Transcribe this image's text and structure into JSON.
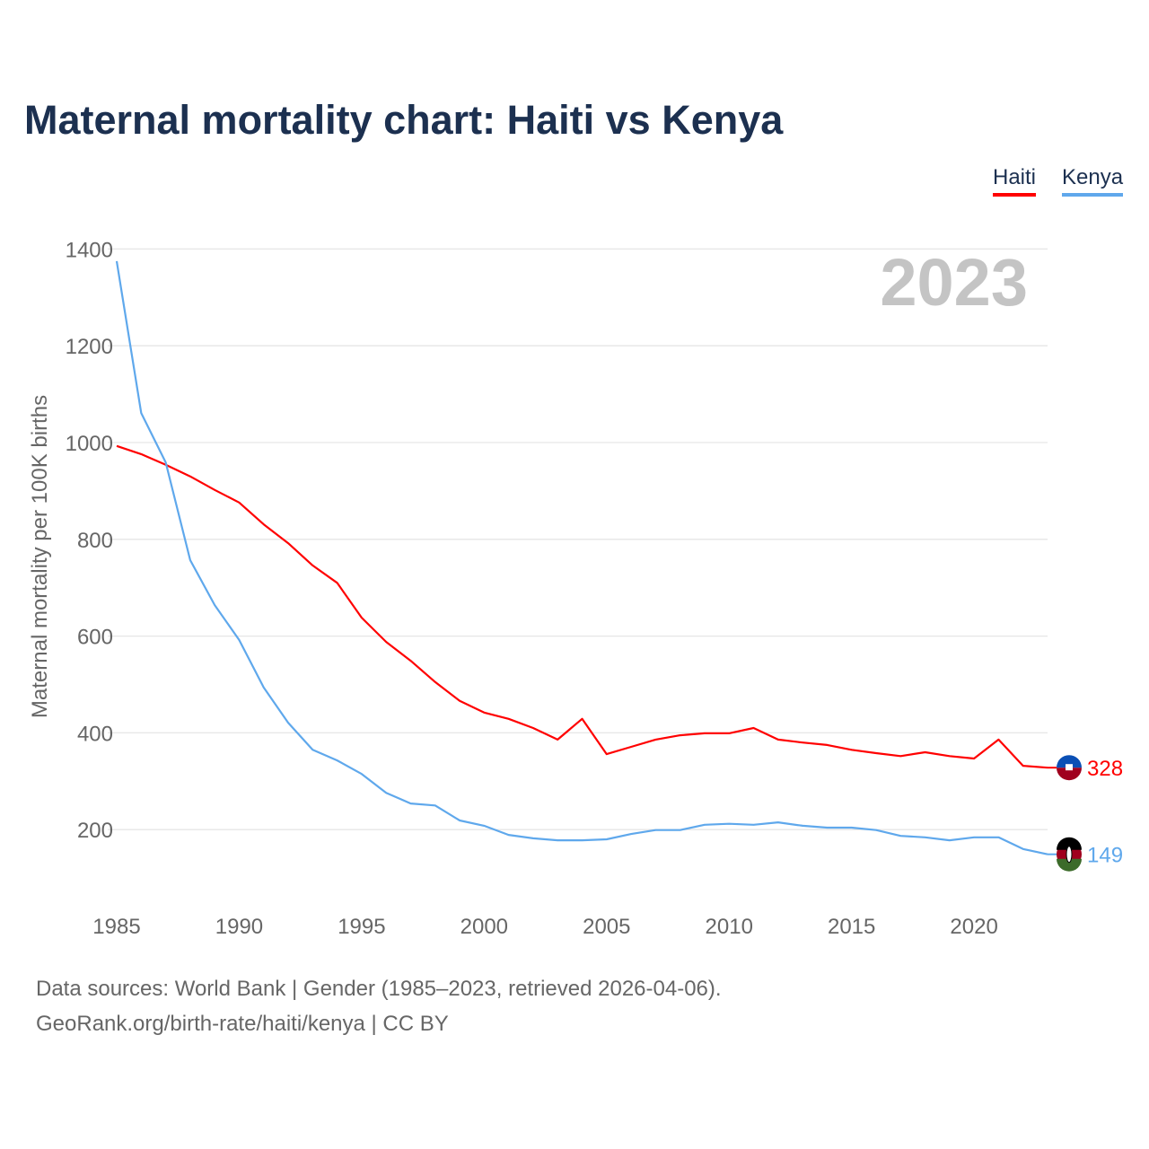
{
  "chart_data": {
    "type": "line",
    "title": "Maternal mortality chart: Haiti vs Kenya",
    "ylabel": "Maternal mortality per 100K births",
    "xlabel": "",
    "ylim": [
      0,
      1400
    ],
    "xlim": [
      1985,
      2023
    ],
    "yticks": [
      200,
      400,
      600,
      800,
      1000,
      1200,
      1400
    ],
    "xticks": [
      1985,
      1990,
      1995,
      2000,
      2005,
      2010,
      2015,
      2020
    ],
    "grid": true,
    "legend_position": "top-right",
    "year_watermark": "2023",
    "x": [
      1985,
      1986,
      1987,
      1988,
      1989,
      1990,
      1991,
      1992,
      1993,
      1994,
      1995,
      1996,
      1997,
      1998,
      1999,
      2000,
      2001,
      2002,
      2003,
      2004,
      2005,
      2006,
      2007,
      2008,
      2009,
      2010,
      2011,
      2012,
      2013,
      2014,
      2015,
      2016,
      2017,
      2018,
      2019,
      2020,
      2021,
      2022,
      2023
    ],
    "series": [
      {
        "name": "Haiti",
        "color": "#ff0000",
        "end_label": "328",
        "values": [
          993,
          976,
          954,
          930,
          902,
          876,
          831,
          792,
          746,
          710,
          638,
          588,
          549,
          505,
          466,
          442,
          429,
          410,
          386,
          429,
          356,
          371,
          386,
          395,
          399,
          399,
          410,
          386,
          380,
          375,
          365,
          358,
          352,
          360,
          352,
          347,
          386,
          332,
          328
        ]
      },
      {
        "name": "Kenya",
        "color": "#5fa8ec",
        "end_label": "149",
        "values": [
          1375,
          1061,
          959,
          757,
          664,
          592,
          494,
          421,
          365,
          343,
          315,
          276,
          254,
          250,
          219,
          208,
          189,
          182,
          178,
          178,
          180,
          191,
          199,
          199,
          210,
          212,
          210,
          215,
          208,
          204,
          204,
          199,
          187,
          184,
          178,
          184,
          184,
          160,
          149
        ]
      }
    ]
  },
  "footer": {
    "line1": "Data sources: World Bank | Gender (1985–2023, retrieved 2026-04-06).",
    "line2": "GeoRank.org/birth-rate/haiti/kenya | CC BY"
  }
}
